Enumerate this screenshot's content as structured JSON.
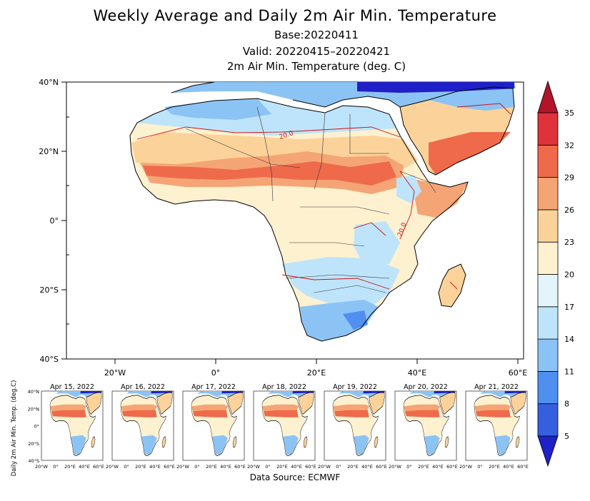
{
  "header": {
    "title": "Weekly Average and Daily 2m Air Min. Temperature",
    "base": "Base:20220411",
    "valid": "Valid: 20220415–20220421",
    "variable": "2m Air Min. Temperature (deg. C)"
  },
  "map": {
    "lat_ticks": [
      "40°N",
      "20°N",
      "0°",
      "20°S",
      "40°S"
    ],
    "lon_ticks": [
      "20°W",
      "0°",
      "20°E",
      "40°E",
      "60°E"
    ],
    "contour_label": "20.0",
    "colorbar_levels": [
      "5",
      "8",
      "11",
      "14",
      "17",
      "20",
      "23",
      "26",
      "29",
      "32",
      "35"
    ],
    "colorbar_colors": [
      "#2020c8",
      "#3460e0",
      "#4f8ff0",
      "#8cc3f5",
      "#bde4fa",
      "#e3f5fb",
      "#fdf1d0",
      "#fbd39a",
      "#f5a575",
      "#ee6a4b",
      "#e0323b",
      "#b0152a"
    ]
  },
  "daily": {
    "ylabel": "Daily 2m Air Min. Temp. (deg.C)",
    "panels": [
      "Apr 15, 2022",
      "Apr 16, 2022",
      "Apr 17, 2022",
      "Apr 18, 2022",
      "Apr 19, 2022",
      "Apr 20, 2022",
      "Apr 21, 2022"
    ],
    "lat_ticks": [
      "40°N",
      "20°N",
      "0°",
      "20°S",
      "40°S"
    ],
    "lon_ticks": [
      "20°W",
      "0°",
      "20°E",
      "40°E",
      "60°E"
    ]
  },
  "footer": {
    "source": "Data Source: ECMWF"
  }
}
